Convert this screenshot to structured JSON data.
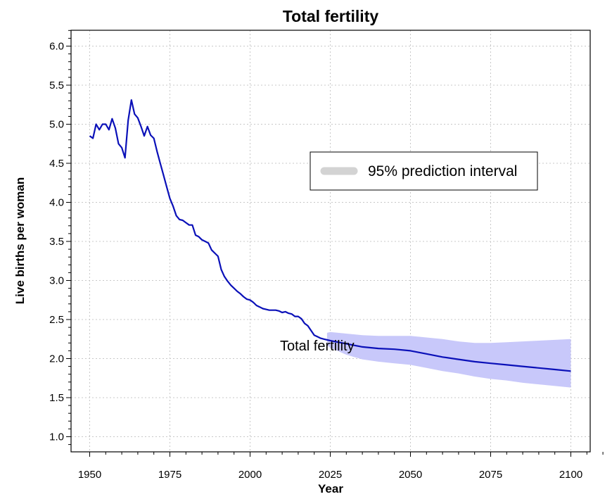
{
  "chart_data": {
    "type": "line",
    "title": "Total fertility",
    "xlabel": "Year",
    "ylabel": "Live births per woman",
    "xlim": [
      1945,
      2112
    ],
    "ylim": [
      0.8,
      6.2
    ],
    "xticks": [
      1950,
      1975,
      2000,
      2025,
      2050,
      2075,
      2100
    ],
    "yticks": [
      1.0,
      1.5,
      2.0,
      2.5,
      3.0,
      3.5,
      4.0,
      4.5,
      5.0,
      5.5,
      6.0
    ],
    "ytick_labels": [
      "1.0",
      "1.5",
      "2.0",
      "2.5",
      "3.0",
      "3.5",
      "4.0",
      "4.5",
      "5.0",
      "5.5",
      "6.0"
    ],
    "grid": true,
    "legend": {
      "position": "top-right",
      "entries": [
        "95% prediction interval"
      ]
    },
    "colors": {
      "line": "#0a10b8",
      "band": "#c8c8fa",
      "legend_swatch": "#d3d3d3",
      "grid": "#c8c8c8"
    },
    "series_label": "Total fertility",
    "series": [
      {
        "x": [
          1950,
          1951,
          1952,
          1953,
          1954,
          1955,
          1956,
          1957,
          1958,
          1959,
          1960,
          1961,
          1962,
          1963,
          1964,
          1965,
          1966,
          1967,
          1968,
          1969,
          1970,
          1971,
          1972,
          1973,
          1974,
          1975,
          1976,
          1977,
          1978,
          1979,
          1980,
          1981,
          1982,
          1983,
          1984,
          1985,
          1986,
          1987,
          1988,
          1989,
          1990,
          1991,
          1992,
          1993,
          1994,
          1995,
          1996,
          1997,
          1998,
          1999,
          2000,
          2001,
          2002,
          2003,
          2004,
          2005,
          2006,
          2007,
          2008,
          2009,
          2010,
          2011,
          2012,
          2013,
          2014,
          2015,
          2016,
          2017,
          2018,
          2019,
          2020,
          2021,
          2022,
          2023,
          2025,
          2030,
          2035,
          2040,
          2045,
          2050,
          2055,
          2060,
          2065,
          2070,
          2075,
          2080,
          2085,
          2090,
          2095,
          2100
        ],
        "values": [
          4.85,
          4.82,
          5.0,
          4.93,
          5.0,
          5.0,
          4.93,
          5.07,
          4.95,
          4.75,
          4.7,
          4.57,
          5.05,
          5.31,
          5.13,
          5.08,
          4.97,
          4.85,
          4.97,
          4.86,
          4.82,
          4.65,
          4.5,
          4.35,
          4.2,
          4.05,
          3.95,
          3.83,
          3.78,
          3.77,
          3.74,
          3.71,
          3.71,
          3.58,
          3.56,
          3.52,
          3.5,
          3.48,
          3.39,
          3.35,
          3.31,
          3.14,
          3.05,
          2.99,
          2.94,
          2.9,
          2.86,
          2.83,
          2.79,
          2.76,
          2.75,
          2.72,
          2.68,
          2.66,
          2.64,
          2.63,
          2.62,
          2.62,
          2.62,
          2.61,
          2.59,
          2.6,
          2.58,
          2.57,
          2.54,
          2.54,
          2.51,
          2.45,
          2.42,
          2.36,
          2.3,
          2.28,
          2.26,
          2.25,
          2.23,
          2.19,
          2.15,
          2.13,
          2.12,
          2.1,
          2.06,
          2.02,
          1.99,
          1.96,
          1.94,
          1.92,
          1.9,
          1.88,
          1.86,
          1.84
        ]
      }
    ],
    "prediction_interval": {
      "name": "95% prediction interval",
      "x": [
        2024,
        2025,
        2030,
        2035,
        2040,
        2045,
        2050,
        2055,
        2060,
        2065,
        2070,
        2075,
        2080,
        2085,
        2090,
        2095,
        2100
      ],
      "upper": [
        2.33,
        2.34,
        2.32,
        2.3,
        2.29,
        2.29,
        2.29,
        2.27,
        2.25,
        2.22,
        2.2,
        2.2,
        2.21,
        2.22,
        2.23,
        2.24,
        2.25
      ],
      "lower": [
        2.17,
        2.14,
        2.05,
        1.99,
        1.96,
        1.94,
        1.92,
        1.88,
        1.84,
        1.81,
        1.77,
        1.74,
        1.72,
        1.69,
        1.67,
        1.65,
        1.63
      ]
    }
  }
}
